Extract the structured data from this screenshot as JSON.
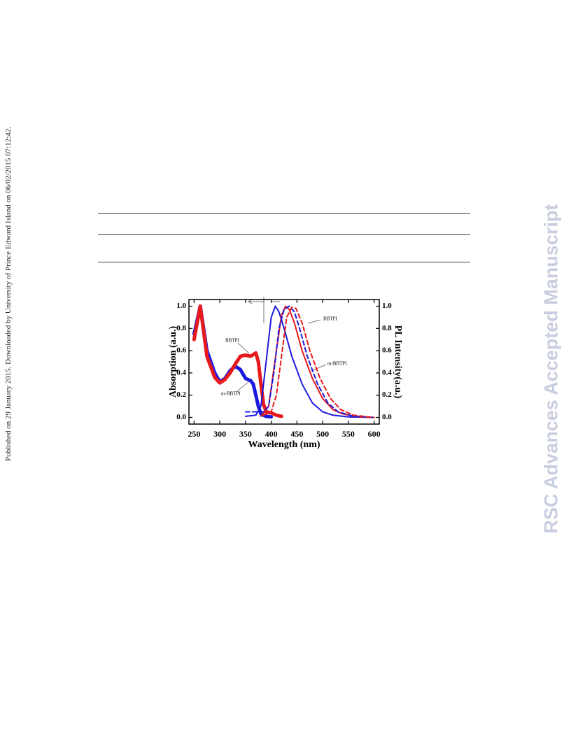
{
  "sidebar": "Published on 29 January 2015. Downloaded by University of Prince Edward Island on 06/02/2015 07:12:42.",
  "watermark": "RSC Advances Accepted Manuscript",
  "chart_data": {
    "type": "line",
    "x_label": "Wavelength (nm)",
    "y_label": "Absorption (a.u.)",
    "y2_label": "PL Intensity(a.u.)",
    "xlim": [
      240,
      610
    ],
    "ylim": [
      -0.06,
      1.06
    ],
    "y2lim": [
      -0.06,
      1.06
    ],
    "xticks": [
      250,
      300,
      350,
      400,
      450,
      500,
      550,
      600
    ],
    "yticks": [
      {
        "value": 0,
        "label": "0.0"
      },
      {
        "value": 0.2,
        "label": "0.2"
      },
      {
        "value": 0.4,
        "label": "0.4"
      },
      {
        "value": 0.6,
        "label": "0.6"
      },
      {
        "value": 0.8,
        "label": "0.8"
      },
      {
        "value": 1,
        "label": "1.0"
      }
    ],
    "y2ticks": [
      {
        "value": 0,
        "label": "0.0"
      },
      {
        "value": 0.2,
        "label": "0.2"
      },
      {
        "value": 0.4,
        "label": "0.4"
      },
      {
        "value": 0.6,
        "label": "0.6"
      },
      {
        "value": 0.8,
        "label": "0.8"
      },
      {
        "value": 1,
        "label": "1.0"
      }
    ],
    "annotations": [
      "BBTPI",
      "m-BBTPI",
      "BBTPI",
      "m-BBTPI"
    ],
    "series": [
      {
        "color": "#1a1adf",
        "style": "solid",
        "width": 5,
        "x": [
          250,
          262,
          275,
          290,
          300,
          310,
          320,
          330,
          340,
          350,
          360,
          365,
          370,
          375,
          380,
          390,
          400
        ],
        "values": [
          0.75,
          1.0,
          0.6,
          0.4,
          0.32,
          0.35,
          0.42,
          0.46,
          0.43,
          0.35,
          0.33,
          0.3,
          0.2,
          0.1,
          0.03,
          0.01,
          0.005
        ]
      },
      {
        "color": "#e8191c",
        "style": "solid",
        "width": 5,
        "x": [
          250,
          262,
          275,
          290,
          300,
          310,
          320,
          330,
          340,
          350,
          360,
          370,
          375,
          380,
          385,
          390,
          400,
          410,
          420
        ],
        "values": [
          0.7,
          1.0,
          0.55,
          0.36,
          0.31,
          0.34,
          0.4,
          0.48,
          0.55,
          0.56,
          0.55,
          0.58,
          0.5,
          0.3,
          0.12,
          0.05,
          0.04,
          0.02,
          0.01
        ]
      },
      {
        "color": "#1a1adf",
        "style": "solid",
        "width": 2,
        "axis": "y2",
        "x": [
          350,
          370,
          380,
          390,
          400,
          408,
          415,
          425,
          440,
          460,
          480,
          500,
          520,
          550,
          600
        ],
        "values": [
          0.01,
          0.02,
          0.1,
          0.5,
          0.9,
          1.0,
          0.95,
          0.8,
          0.55,
          0.3,
          0.13,
          0.05,
          0.02,
          0.005,
          0
        ]
      },
      {
        "color": "#e8191c",
        "style": "solid",
        "width": 2,
        "axis": "y2",
        "x": [
          380,
          395,
          410,
          420,
          428,
          435,
          445,
          460,
          480,
          500,
          520,
          540,
          570,
          600
        ],
        "values": [
          0.01,
          0.1,
          0.6,
          0.92,
          1.0,
          0.97,
          0.85,
          0.6,
          0.35,
          0.17,
          0.07,
          0.03,
          0.005,
          0
        ]
      },
      {
        "color": "#1a1adf",
        "style": "dashed",
        "width": 2,
        "axis": "y2",
        "x": [
          350,
          385,
          395,
          405,
          415,
          425,
          435,
          445,
          455,
          470,
          490,
          510,
          530,
          560,
          600
        ],
        "values": [
          0.05,
          0.05,
          0.1,
          0.4,
          0.8,
          0.97,
          1.0,
          0.95,
          0.8,
          0.55,
          0.3,
          0.13,
          0.05,
          0.01,
          0
        ]
      },
      {
        "color": "#e8191c",
        "style": "dashed",
        "width": 2,
        "axis": "y2",
        "x": [
          385,
          400,
          410,
          420,
          430,
          440,
          448,
          460,
          475,
          495,
          515,
          535,
          560,
          600
        ],
        "values": [
          0.02,
          0.05,
          0.2,
          0.55,
          0.9,
          0.99,
          0.98,
          0.85,
          0.6,
          0.35,
          0.17,
          0.07,
          0.02,
          0
        ]
      }
    ]
  }
}
